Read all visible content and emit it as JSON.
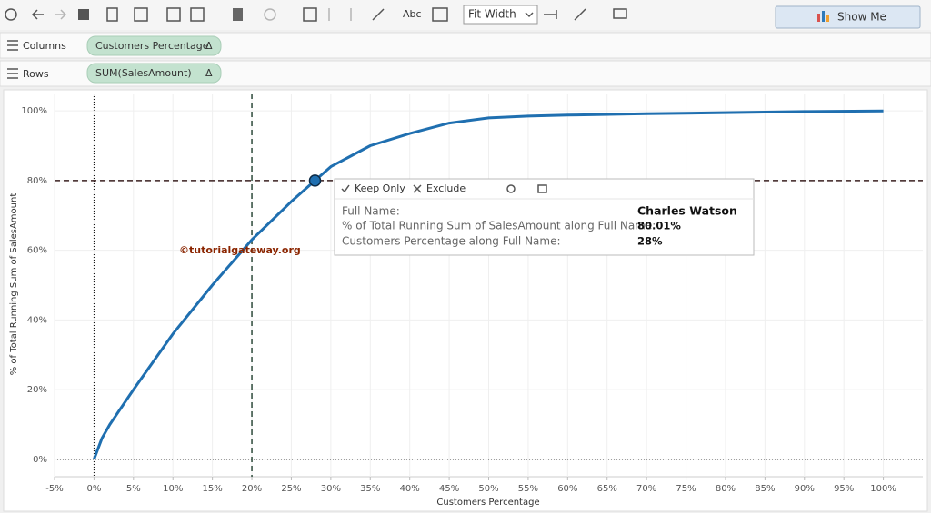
{
  "toolbar": {
    "label_button": "Abc",
    "fit": "Fit Width",
    "show_me": "Show Me"
  },
  "shelves": {
    "columns": {
      "label": "Columns",
      "pill": "Customers Percentage",
      "pill_icon": "Δ"
    },
    "rows": {
      "label": "Rows",
      "pill": "SUM(SalesAmount)",
      "pill_icon": "Δ"
    }
  },
  "watermark": "©tutorialgateway.org",
  "tooltip": {
    "actions": [
      "Keep Only",
      "Exclude"
    ],
    "rows": [
      {
        "label": "Full Name:",
        "value": "Charles Watson"
      },
      {
        "label": "% of Total Running Sum of SalesAmount along Full Name:",
        "value": "80.01%"
      },
      {
        "label": "Customers Percentage along Full Name:",
        "value": "28%"
      }
    ]
  },
  "chart_data": {
    "type": "line",
    "x_label": "Customers Percentage",
    "y_label": "% of Total Running Sum of SalesAmount",
    "x": [
      0,
      1,
      2,
      5,
      10,
      15,
      20,
      25,
      28,
      30,
      35,
      40,
      45,
      50,
      55,
      60,
      70,
      80,
      90,
      100
    ],
    "series": [
      {
        "color": "#1f6fb0",
        "values": [
          0,
          6,
          10,
          20,
          36,
          50,
          63,
          74,
          80.01,
          84,
          90,
          93.5,
          96.5,
          98,
          98.5,
          98.8,
          99.2,
          99.5,
          99.8,
          100
        ]
      }
    ],
    "highlight": {
      "x": 28,
      "y": 80.01,
      "color": "#1f6fb0"
    },
    "reference_lines": {
      "x": 20,
      "y": 80
    },
    "xlim": [
      -5,
      105
    ],
    "ylim": [
      -5,
      105
    ],
    "xticks": [
      {
        "value": -5,
        "label": "-5%"
      },
      {
        "value": 0,
        "label": "0%"
      },
      {
        "value": 5,
        "label": "5%"
      },
      {
        "value": 10,
        "label": "10%"
      },
      {
        "value": 15,
        "label": "15%"
      },
      {
        "value": 20,
        "label": "20%"
      },
      {
        "value": 25,
        "label": "25%"
      },
      {
        "value": 30,
        "label": "30%"
      },
      {
        "value": 35,
        "label": "35%"
      },
      {
        "value": 40,
        "label": "40%"
      },
      {
        "value": 45,
        "label": "45%"
      },
      {
        "value": 50,
        "label": "50%"
      },
      {
        "value": 55,
        "label": "55%"
      },
      {
        "value": 60,
        "label": "60%"
      },
      {
        "value": 65,
        "label": "65%"
      },
      {
        "value": 70,
        "label": "70%"
      },
      {
        "value": 75,
        "label": "75%"
      },
      {
        "value": 80,
        "label": "80%"
      },
      {
        "value": 85,
        "label": "85%"
      },
      {
        "value": 90,
        "label": "90%"
      },
      {
        "value": 95,
        "label": "95%"
      },
      {
        "value": 100,
        "label": "100%"
      }
    ],
    "yticks": [
      {
        "value": 0,
        "label": "0%"
      },
      {
        "value": 20,
        "label": "20%"
      },
      {
        "value": 40,
        "label": "40%"
      },
      {
        "value": 60,
        "label": "60%"
      },
      {
        "value": 80,
        "label": "80%"
      },
      {
        "value": 100,
        "label": "100%"
      }
    ],
    "grid": true
  }
}
